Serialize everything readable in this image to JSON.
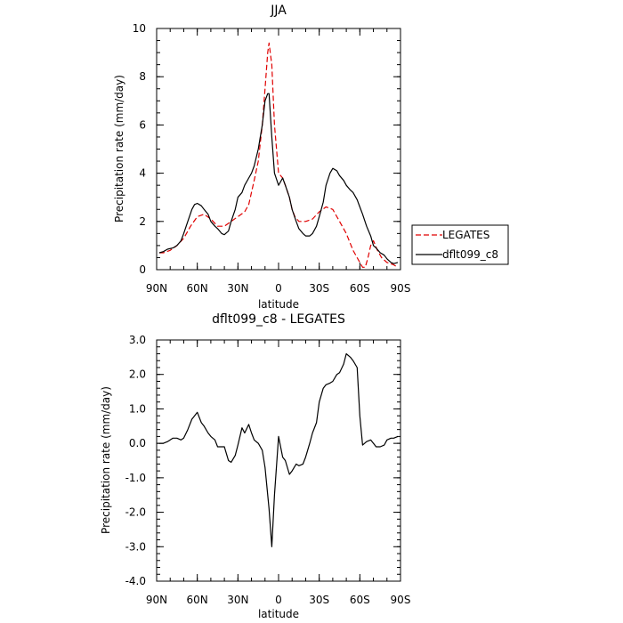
{
  "chart_data": [
    {
      "type": "line",
      "title": "JJA",
      "xlabel": "latitude",
      "ylabel": "Precipitation rate (mm/day)",
      "xlim": [
        -90,
        90
      ],
      "ylim": [
        0,
        10
      ],
      "xticks": [
        -90,
        -60,
        -30,
        0,
        30,
        60,
        90
      ],
      "xtick_labels": [
        "90N",
        "60N",
        "30N",
        "0",
        "30S",
        "60S",
        "90S"
      ],
      "yticks": [
        0,
        2,
        4,
        6,
        8,
        10
      ],
      "ytick_labels": [
        "0",
        "2",
        "4",
        "6",
        "8",
        "10"
      ],
      "legend_position": "right",
      "series": [
        {
          "name": "LEGATES",
          "color": "#e00000",
          "dash": "dashed",
          "x": [
            -88,
            -85,
            -80,
            -75,
            -70,
            -65,
            -60,
            -55,
            -50,
            -45,
            -40,
            -35,
            -30,
            -25,
            -22,
            -18,
            -15,
            -12,
            -10,
            -8,
            -7,
            -5,
            -3,
            0,
            3,
            5,
            8,
            10,
            12,
            15,
            20,
            25,
            30,
            35,
            40,
            45,
            50,
            55,
            60,
            62,
            64,
            66,
            68,
            70,
            73,
            76,
            80,
            85,
            88
          ],
          "y": [
            0.7,
            0.7,
            0.8,
            1.0,
            1.3,
            1.8,
            2.2,
            2.3,
            2.1,
            1.8,
            1.8,
            2.0,
            2.2,
            2.4,
            2.7,
            3.7,
            4.5,
            6.0,
            7.5,
            9.0,
            9.4,
            8.5,
            6.0,
            4.0,
            3.8,
            3.5,
            3.0,
            2.5,
            2.2,
            2.0,
            2.0,
            2.1,
            2.4,
            2.6,
            2.5,
            2.0,
            1.5,
            0.8,
            0.3,
            0.1,
            0.1,
            0.5,
            1.0,
            1.2,
            0.8,
            0.5,
            0.3,
            0.2,
            0.1
          ]
        },
        {
          "name": "dflt099_c8",
          "color": "#000000",
          "dash": "solid",
          "x": [
            -88,
            -85,
            -82,
            -78,
            -75,
            -72,
            -70,
            -67,
            -64,
            -62,
            -60,
            -57,
            -55,
            -52,
            -50,
            -47,
            -45,
            -42,
            -40,
            -37,
            -35,
            -32,
            -30,
            -27,
            -25,
            -22,
            -20,
            -18,
            -15,
            -12,
            -10,
            -8,
            -7,
            -5,
            -3,
            0,
            3,
            5,
            8,
            10,
            13,
            15,
            18,
            20,
            23,
            25,
            28,
            30,
            33,
            35,
            38,
            40,
            43,
            45,
            48,
            50,
            53,
            55,
            58,
            60,
            62,
            65,
            68,
            70,
            72,
            75,
            78,
            80,
            83,
            85,
            88
          ],
          "y": [
            0.7,
            0.75,
            0.85,
            0.9,
            1.0,
            1.2,
            1.5,
            2.0,
            2.5,
            2.7,
            2.75,
            2.65,
            2.5,
            2.3,
            2.0,
            1.8,
            1.7,
            1.5,
            1.45,
            1.6,
            2.0,
            2.5,
            3.0,
            3.2,
            3.5,
            3.8,
            4.0,
            4.3,
            5.0,
            6.0,
            7.0,
            7.3,
            7.3,
            5.5,
            4.0,
            3.5,
            3.8,
            3.5,
            3.0,
            2.5,
            2.0,
            1.7,
            1.5,
            1.4,
            1.4,
            1.5,
            1.8,
            2.2,
            2.8,
            3.5,
            4.0,
            4.2,
            4.1,
            3.9,
            3.7,
            3.5,
            3.3,
            3.2,
            2.9,
            2.6,
            2.3,
            1.8,
            1.4,
            1.0,
            0.9,
            0.7,
            0.6,
            0.45,
            0.3,
            0.25,
            0.3
          ]
        }
      ]
    },
    {
      "type": "line",
      "title": "dflt099_c8 - LEGATES",
      "xlabel": "latitude",
      "ylabel": "Precipitation rate (mm/day)",
      "xlim": [
        -90,
        90
      ],
      "ylim": [
        -4.0,
        3.0
      ],
      "xticks": [
        -90,
        -60,
        -30,
        0,
        30,
        60,
        90
      ],
      "xtick_labels": [
        "90N",
        "60N",
        "30N",
        "0",
        "30S",
        "60S",
        "90S"
      ],
      "yticks": [
        -4,
        -3,
        -2,
        -1,
        0,
        1,
        2,
        3
      ],
      "ytick_labels": [
        "-4.0",
        "-3.0",
        "-2.0",
        "-1.0",
        "0.0",
        "1.0",
        "2.0",
        "3.0"
      ],
      "series": [
        {
          "color": "#000000",
          "dash": "solid",
          "x": [
            -88,
            -85,
            -82,
            -78,
            -75,
            -72,
            -70,
            -67,
            -64,
            -62,
            -60,
            -57,
            -55,
            -52,
            -50,
            -47,
            -45,
            -42,
            -40,
            -37,
            -35,
            -32,
            -30,
            -27,
            -25,
            -22,
            -20,
            -18,
            -15,
            -12,
            -10,
            -8,
            -7,
            -5,
            -3,
            0,
            3,
            5,
            8,
            10,
            13,
            15,
            18,
            20,
            23,
            25,
            28,
            30,
            33,
            35,
            38,
            40,
            43,
            45,
            48,
            50,
            53,
            55,
            58,
            60,
            62,
            65,
            68,
            70,
            72,
            75,
            78,
            80,
            83,
            85,
            88
          ],
          "y": [
            0.0,
            0.0,
            0.05,
            0.15,
            0.15,
            0.1,
            0.15,
            0.4,
            0.7,
            0.8,
            0.9,
            0.6,
            0.5,
            0.3,
            0.2,
            0.1,
            -0.1,
            -0.1,
            -0.1,
            -0.5,
            -0.55,
            -0.35,
            -0.05,
            0.45,
            0.3,
            0.55,
            0.3,
            0.1,
            0.0,
            -0.2,
            -0.7,
            -1.5,
            -1.9,
            -3.0,
            -1.5,
            0.2,
            -0.4,
            -0.5,
            -0.9,
            -0.8,
            -0.6,
            -0.65,
            -0.6,
            -0.4,
            0.0,
            0.3,
            0.6,
            1.2,
            1.6,
            1.7,
            1.75,
            1.8,
            2.0,
            2.05,
            2.3,
            2.6,
            2.5,
            2.4,
            2.2,
            0.8,
            -0.05,
            0.05,
            0.1,
            0.0,
            -0.1,
            -0.1,
            -0.05,
            0.1,
            0.15,
            0.15,
            0.2
          ]
        }
      ]
    }
  ]
}
